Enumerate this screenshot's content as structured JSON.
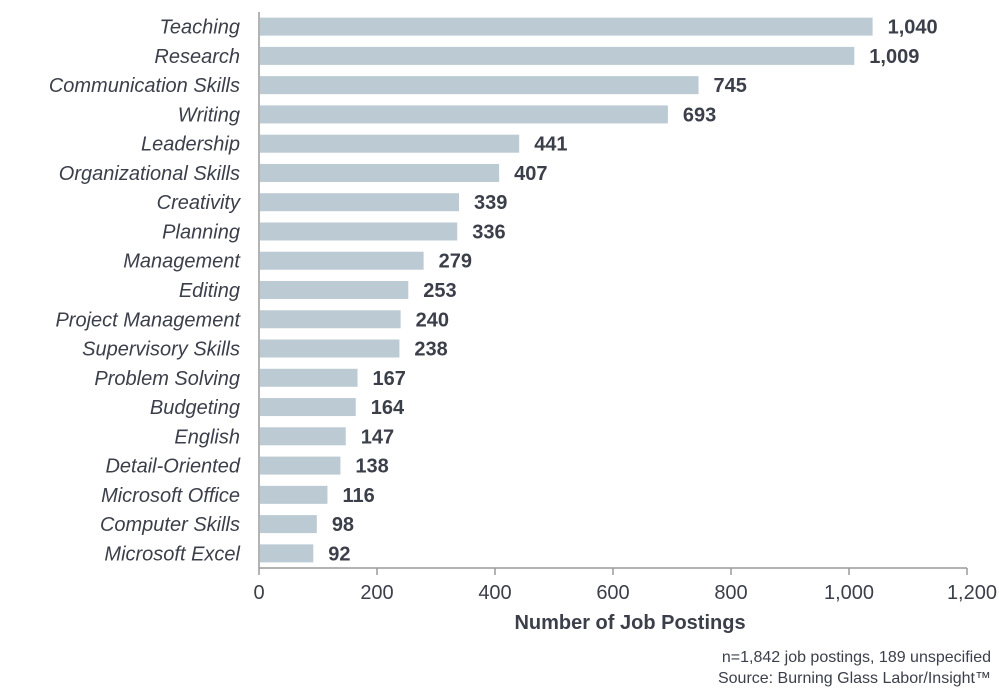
{
  "chart_data": {
    "type": "bar",
    "orientation": "horizontal",
    "categories": [
      "Teaching",
      "Research",
      "Communication Skills",
      "Writing",
      "Leadership",
      "Organizational Skills",
      "Creativity",
      "Planning",
      "Management",
      "Editing",
      "Project Management",
      "Supervisory Skills",
      "Problem Solving",
      "Budgeting",
      "English",
      "Detail-Oriented",
      "Microsoft Office",
      "Computer Skills",
      "Microsoft Excel"
    ],
    "values": [
      1040,
      1009,
      745,
      693,
      441,
      407,
      339,
      336,
      279,
      253,
      240,
      238,
      167,
      164,
      147,
      138,
      116,
      98,
      92
    ],
    "value_labels": [
      "1,040",
      "1,009",
      "745",
      "693",
      "441",
      "407",
      "339",
      "336",
      "279",
      "253",
      "240",
      "238",
      "167",
      "164",
      "147",
      "138",
      "116",
      "98",
      "92"
    ],
    "xlabel": "Number of Job Postings",
    "ylabel": "",
    "xlim": [
      0,
      1200
    ],
    "xticks": [
      0,
      200,
      400,
      600,
      800,
      1000,
      1200
    ],
    "xtick_labels": [
      "0",
      "200",
      "400",
      "600",
      "800",
      "1,000",
      "1,200"
    ],
    "grid": false,
    "legend": "none",
    "bar_color": "#bccad3",
    "text_color": "#3b3f4a"
  },
  "footnotes": {
    "note": "n=1,842 job postings, 189 unspecified",
    "source": "Source: Burning Glass Labor/Insight™"
  }
}
